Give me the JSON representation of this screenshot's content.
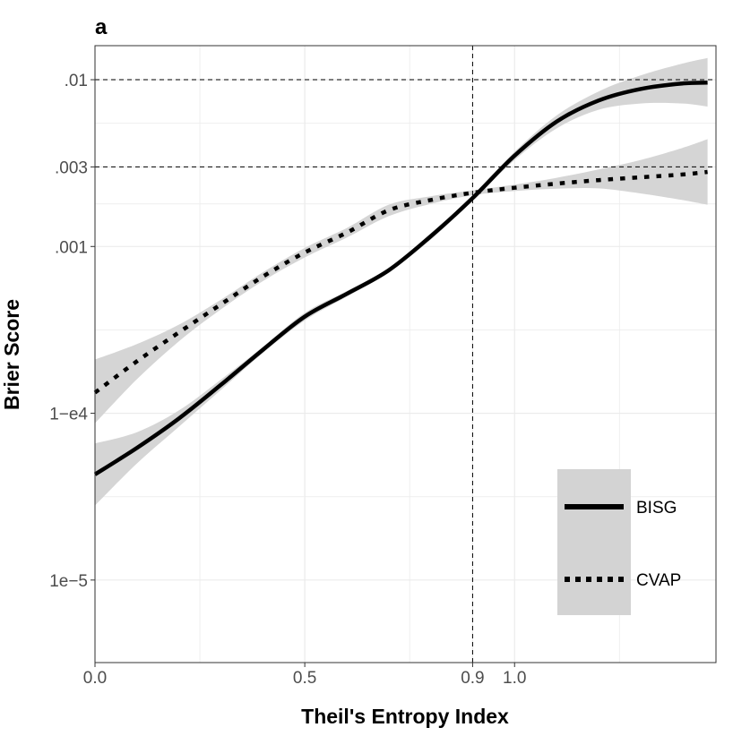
{
  "panel_label": "a",
  "chart_data": {
    "type": "line",
    "title": "",
    "xlabel": "Theil's Entropy Index",
    "ylabel": "Brier Score",
    "x_scale": "linear",
    "y_scale": "log10",
    "xlim": [
      0.0,
      1.48
    ],
    "ylim": [
      3.2e-06,
      0.016
    ],
    "x_ticks": [
      {
        "value": 0.0,
        "label": "0.0"
      },
      {
        "value": 0.5,
        "label": "0.5"
      },
      {
        "value": 0.9,
        "label": "0.9"
      },
      {
        "value": 1.0,
        "label": "1.0"
      }
    ],
    "y_ticks": [
      {
        "value": 1e-05,
        "label": "1e−5"
      },
      {
        "value": 0.0001,
        "label": "1−e4"
      },
      {
        "value": 0.001,
        "label": ".001"
      },
      {
        "value": 0.003,
        "label": ".003"
      },
      {
        "value": 0.01,
        "label": ".01"
      }
    ],
    "grid": true,
    "reference_lines": {
      "vertical_x": [
        0.9
      ],
      "horizontal_y": [
        0.01,
        0.003
      ]
    },
    "legend_position": "bottom-right",
    "colors": {
      "line": "#000000",
      "ribbon": "#d3d3d3",
      "grid": "#ebebeb",
      "reference": "#000000"
    },
    "series": [
      {
        "name": "BISG",
        "style": "solid",
        "x": [
          0.0,
          0.1,
          0.2,
          0.3,
          0.4,
          0.5,
          0.6,
          0.7,
          0.8,
          0.9,
          1.0,
          1.1,
          1.2,
          1.3,
          1.4,
          1.46
        ],
        "y": [
          4.3e-05,
          6.2e-05,
          9.3e-05,
          0.000148,
          0.00024,
          0.00038,
          0.00052,
          0.00072,
          0.00115,
          0.00195,
          0.0035,
          0.0056,
          0.0075,
          0.0088,
          0.0095,
          0.0096
        ],
        "lower": [
          2.8e-05,
          5e-05,
          8.3e-05,
          0.000138,
          0.00023,
          0.00036,
          0.0005,
          0.0007,
          0.0011,
          0.00188,
          0.0033,
          0.0051,
          0.0066,
          0.0072,
          0.0072,
          0.0069
        ],
        "upper": [
          6.6e-05,
          7.7e-05,
          0.000104,
          0.000159,
          0.00025,
          0.0004,
          0.00054,
          0.00074,
          0.0012,
          0.00203,
          0.0037,
          0.0061,
          0.0085,
          0.0106,
          0.0125,
          0.0135
        ]
      },
      {
        "name": "CVAP",
        "style": "dotted",
        "x": [
          0.0,
          0.1,
          0.2,
          0.3,
          0.4,
          0.5,
          0.6,
          0.7,
          0.8,
          0.9,
          1.0,
          1.1,
          1.2,
          1.3,
          1.4,
          1.46
        ],
        "y": [
          0.000133,
          0.000205,
          0.000305,
          0.00045,
          0.00066,
          0.00092,
          0.00121,
          0.00165,
          0.0019,
          0.0021,
          0.00225,
          0.00238,
          0.0025,
          0.0026,
          0.0027,
          0.0028
        ],
        "lower": [
          8.7e-05,
          0.00016,
          0.00027,
          0.00042,
          0.00062,
          0.00086,
          0.00113,
          0.00152,
          0.0018,
          0.00203,
          0.00215,
          0.00222,
          0.00223,
          0.00208,
          0.0019,
          0.00178
        ],
        "upper": [
          0.00021,
          0.00026,
          0.00034,
          0.00048,
          0.0007,
          0.00098,
          0.00129,
          0.00178,
          0.002,
          0.00217,
          0.00235,
          0.00258,
          0.0029,
          0.0033,
          0.0039,
          0.0044
        ]
      }
    ]
  }
}
